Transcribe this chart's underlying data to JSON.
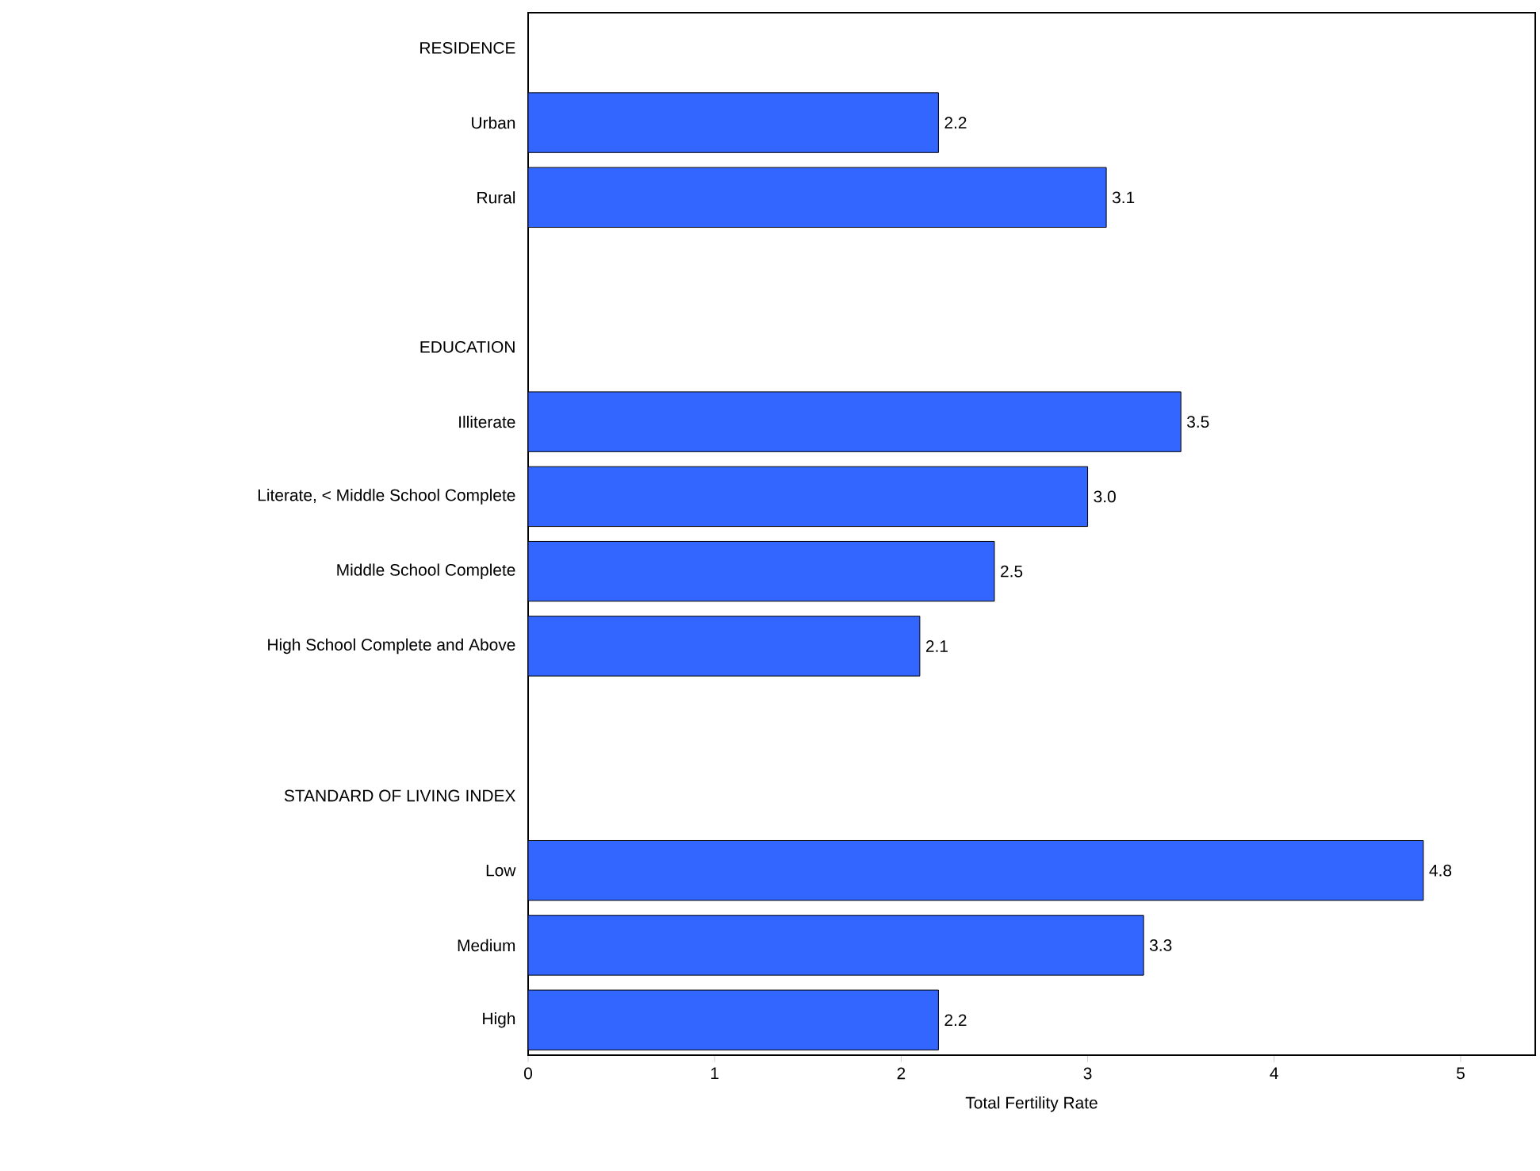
{
  "chart_data": {
    "type": "bar",
    "orientation": "horizontal",
    "xlabel": "Total Fertility Rate",
    "categories": [
      "RESIDENCE",
      "Urban",
      "Rural",
      null,
      "EDUCATION",
      "Illiterate",
      "Literate, < Middle School Complete",
      "Middle School Complete",
      "High School Complete and Above",
      null,
      "STANDARD OF LIVING INDEX",
      "Low",
      "Medium",
      "High"
    ],
    "values": [
      null,
      2.2,
      3.1,
      null,
      null,
      3.5,
      3.0,
      2.5,
      2.1,
      null,
      null,
      4.8,
      3.3,
      2.2
    ],
    "value_labels": [
      null,
      "2.2",
      "3.1",
      null,
      null,
      "3.5",
      "3.0",
      "2.5",
      "2.1",
      null,
      null,
      "4.8",
      "3.3",
      "2.2"
    ],
    "color": "#3366ff",
    "xlim": [
      0,
      5.4
    ],
    "xticks": [
      0,
      1,
      2,
      3,
      4,
      5
    ]
  }
}
